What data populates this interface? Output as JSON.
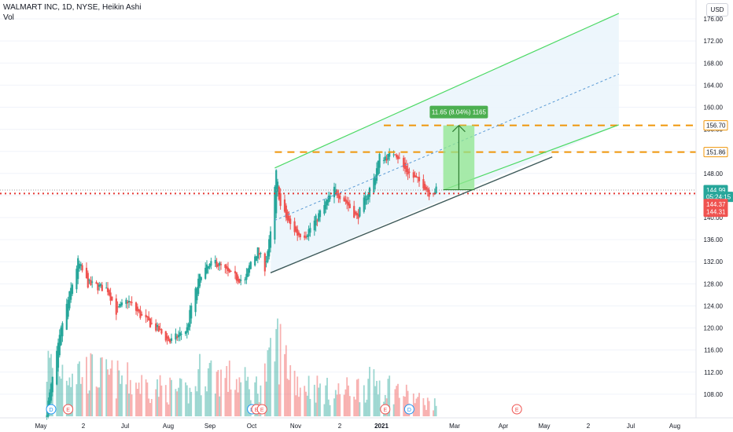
{
  "header": {
    "title": "WALMART INC, 1D, NYSE, Heikin Ashi",
    "volume_label": "Vol"
  },
  "currency": "USD",
  "colors": {
    "up": "#26a69a",
    "down": "#ef5350",
    "channel": "#4cd964",
    "support": "#3d5a5a",
    "level": "#f0960a",
    "price_line": "#e53935",
    "measure_fill": "#8ee68e",
    "measure_label": "#4caf50",
    "channel_fill": "#eaf4fc"
  },
  "chart_data": {
    "type": "candlestick",
    "title": "WALMART INC, 1D, NYSE, Heikin Ashi",
    "y_axis": {
      "range": [
        104,
        178
      ],
      "ticks": [
        108,
        112,
        116,
        120,
        124,
        128,
        132,
        136,
        140,
        144,
        148,
        152,
        156,
        160,
        164,
        168,
        172,
        176
      ],
      "tick_labels": [
        "108.00",
        "112.00",
        "116.00",
        "120.00",
        "124.00",
        "128.00",
        "132.00",
        "136.00",
        "140.00",
        "144.00",
        "148.00",
        "152.00",
        "156.00",
        "160.00",
        "164.00",
        "168.00",
        "172.00",
        "176.00"
      ]
    },
    "x_axis": {
      "labels": [
        "May",
        "2",
        "Jul",
        "Aug",
        "Sep",
        "Oct",
        "Nov",
        "2",
        "2021",
        "Mar",
        "Apr",
        "May",
        "2",
        "Jul",
        "Aug"
      ],
      "bold": [
        "2021"
      ]
    },
    "price_path": [
      {
        "d": "2020-03-23",
        "c": 105
      },
      {
        "d": "2020-04-03",
        "c": 121
      },
      {
        "d": "2020-04-14",
        "c": 132
      },
      {
        "d": "2020-04-21",
        "c": 128
      },
      {
        "d": "2020-05-05",
        "c": 127
      },
      {
        "d": "2020-05-11",
        "c": 123
      },
      {
        "d": "2020-05-19",
        "c": 125
      },
      {
        "d": "2020-05-29",
        "c": 122
      },
      {
        "d": "2020-06-08",
        "c": 120
      },
      {
        "d": "2020-06-18",
        "c": 117.5
      },
      {
        "d": "2020-06-30",
        "c": 119.8
      },
      {
        "d": "2020-07-03",
        "c": 124
      },
      {
        "d": "2020-07-10",
        "c": 130
      },
      {
        "d": "2020-07-20",
        "c": 132
      },
      {
        "d": "2020-07-31",
        "c": 129.5
      },
      {
        "d": "2020-08-10",
        "c": 128.5
      },
      {
        "d": "2020-08-14",
        "c": 132
      },
      {
        "d": "2020-08-19",
        "c": 134
      },
      {
        "d": "2020-08-24",
        "c": 131
      },
      {
        "d": "2020-08-28",
        "c": 137
      },
      {
        "d": "2020-09-01",
        "c": 148
      },
      {
        "d": "2020-09-04",
        "c": 142
      },
      {
        "d": "2020-09-10",
        "c": 139
      },
      {
        "d": "2020-09-16",
        "c": 137
      },
      {
        "d": "2020-09-22",
        "c": 137
      },
      {
        "d": "2020-09-30",
        "c": 140
      },
      {
        "d": "2020-10-07",
        "c": 143
      },
      {
        "d": "2020-10-12",
        "c": 145
      },
      {
        "d": "2020-10-20",
        "c": 143
      },
      {
        "d": "2020-10-28",
        "c": 140
      },
      {
        "d": "2020-11-04",
        "c": 144
      },
      {
        "d": "2020-11-09",
        "c": 147
      },
      {
        "d": "2020-11-13",
        "c": 151
      },
      {
        "d": "2020-11-19",
        "c": 151
      },
      {
        "d": "2020-11-24",
        "c": 152
      },
      {
        "d": "2020-11-30",
        "c": 149
      },
      {
        "d": "2020-12-08",
        "c": 147
      },
      {
        "d": "2020-12-14",
        "c": 146
      },
      {
        "d": "2020-12-18",
        "c": 144.5
      },
      {
        "d": "2020-12-23",
        "c": 144.99
      }
    ],
    "volume_range": [
      0,
      16
    ],
    "volume_profile": [
      {
        "d": "2020-03-23",
        "v": 9
      },
      {
        "d": "2020-04-14",
        "v": 8
      },
      {
        "d": "2020-06-08",
        "v": 5
      },
      {
        "d": "2020-07-03",
        "v": 4
      },
      {
        "d": "2020-07-10",
        "v": 8
      },
      {
        "d": "2020-08-19",
        "v": 5
      },
      {
        "d": "2020-08-28",
        "v": 9
      },
      {
        "d": "2020-09-01",
        "v": 13
      },
      {
        "d": "2020-09-16",
        "v": 6
      },
      {
        "d": "2020-10-12",
        "v": 4
      },
      {
        "d": "2020-11-13",
        "v": 6
      },
      {
        "d": "2020-12-08",
        "v": 3
      },
      {
        "d": "2020-12-23",
        "v": 2
      }
    ],
    "drawings": {
      "channel_upper": [
        {
          "d": "2020-08-31",
          "p": 149
        },
        {
          "d": "2021-05-01",
          "p": 177
        }
      ],
      "channel_lower_ext": [
        {
          "d": "2020-12-28",
          "p": 145
        },
        {
          "d": "2021-05-01",
          "p": 156.8
        }
      ],
      "channel_mid": [
        {
          "d": "2020-08-31",
          "p": 139.5
        },
        {
          "d": "2021-05-01",
          "p": 166
        }
      ],
      "support": [
        {
          "d": "2020-08-28",
          "p": 130
        },
        {
          "d": "2021-03-15",
          "p": 151
        }
      ],
      "level_151": {
        "p": 151.86,
        "from": "2020-08-31"
      },
      "level_156": {
        "p": 156.7,
        "from": "2020-11-16"
      },
      "current_price": 144.37,
      "measure": {
        "d1": "2020-12-28",
        "d2": "2021-01-19",
        "p1": 145.05,
        "p2": 156.7,
        "label": "11.65 (8.04%) 1165"
      }
    },
    "price_tags": [
      {
        "p": 156.7,
        "text": "156.70",
        "kind": "level"
      },
      {
        "p": 151.86,
        "text": "151.86",
        "kind": "level"
      },
      {
        "p": 144.99,
        "text": "144.99",
        "kind": "last"
      },
      {
        "p": 143.75,
        "text": "05:24:15",
        "kind": "timer"
      },
      {
        "p": 142.45,
        "text": "144.37",
        "kind": "current"
      },
      {
        "p": 141.05,
        "text": "144.31",
        "kind": "current"
      }
    ],
    "events": [
      {
        "d": "2020-03-26",
        "label": "D",
        "kind": "dividend"
      },
      {
        "d": "2020-04-07",
        "label": "E",
        "kind": "earnings"
      },
      {
        "d": "2020-08-15",
        "label": "D",
        "kind": "dividend"
      },
      {
        "d": "2020-08-18",
        "label": "E",
        "kind": "earnings"
      },
      {
        "d": "2020-08-22",
        "label": "E",
        "kind": "earnings"
      },
      {
        "d": "2020-11-17",
        "label": "E",
        "kind": "earnings"
      },
      {
        "d": "2020-12-04",
        "label": "D",
        "kind": "dividend"
      },
      {
        "d": "2021-02-18",
        "label": "E",
        "kind": "earnings"
      }
    ]
  }
}
